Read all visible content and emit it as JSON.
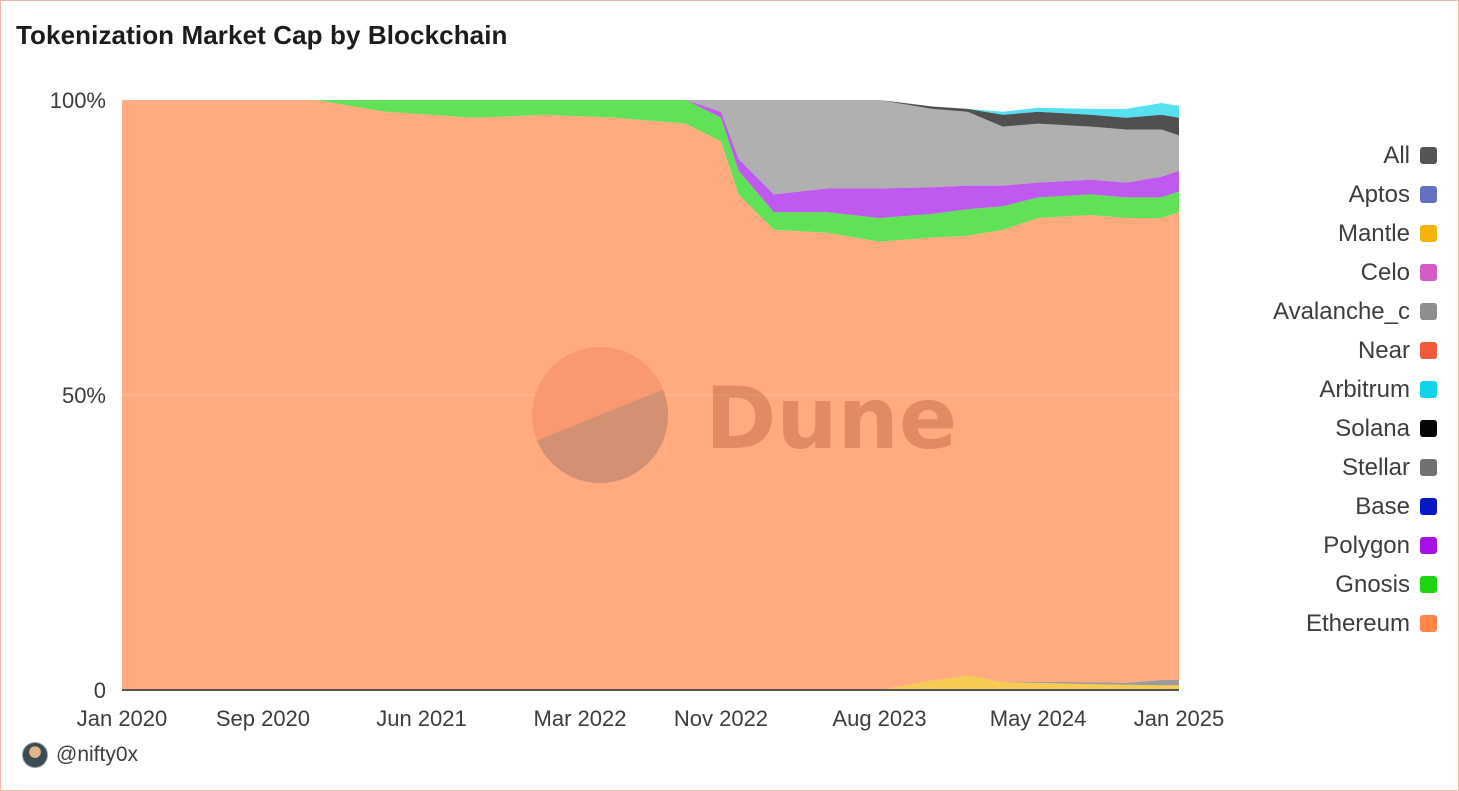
{
  "title": "Tokenization Market Cap by Blockchain",
  "author": "@nifty0x",
  "watermark": "Dune",
  "colors": {
    "Ethereum": "#ff8848",
    "Gnosis": "#1ed40f",
    "Polygon": "#a512e8",
    "Base": "#0717c4",
    "Stellar": "#707070",
    "Solana": "#050505",
    "Arbitrum": "#10d4e8",
    "Near": "#f4583a",
    "Avalanche_c": "#8e8e8e",
    "Celo": "#d45cc4",
    "Mantle": "#f2b40a",
    "Aptos": "#6670c0",
    "All": "#555555"
  },
  "legend": [
    "All",
    "Aptos",
    "Mantle",
    "Celo",
    "Avalanche_c",
    "Near",
    "Arbitrum",
    "Solana",
    "Stellar",
    "Base",
    "Polygon",
    "Gnosis",
    "Ethereum"
  ],
  "chart_data": {
    "type": "area",
    "stacked_percent": true,
    "title": "Tokenization Market Cap by Blockchain",
    "xlabel": "",
    "ylabel": "",
    "ylim": [
      0,
      100
    ],
    "yticks": [
      {
        "value": 0,
        "label": "0"
      },
      {
        "value": 50,
        "label": "50%"
      },
      {
        "value": 100,
        "label": "100%"
      }
    ],
    "xlim": [
      "2020-01",
      "2025-01"
    ],
    "xticks": [
      {
        "value": "2020-01",
        "label": "Jan 2020"
      },
      {
        "value": "2020-09",
        "label": "Sep 2020"
      },
      {
        "value": "2021-06",
        "label": "Jun 2021"
      },
      {
        "value": "2022-03",
        "label": "Mar 2022"
      },
      {
        "value": "2022-11",
        "label": "Nov 2022"
      },
      {
        "value": "2023-08",
        "label": "Aug 2023"
      },
      {
        "value": "2024-05",
        "label": "May 2024"
      },
      {
        "value": "2025-01",
        "label": "Jan 2025"
      }
    ],
    "grid": true,
    "legend_position": "right",
    "x": [
      "2020-01",
      "2020-06",
      "2020-12",
      "2021-04",
      "2021-09",
      "2022-01",
      "2022-05",
      "2022-09",
      "2022-11",
      "2022-12",
      "2023-02",
      "2023-05",
      "2023-08",
      "2023-11",
      "2024-01",
      "2024-03",
      "2024-05",
      "2024-08",
      "2024-10",
      "2024-12",
      "2025-01"
    ],
    "series": [
      {
        "name": "Mantle",
        "values": [
          0,
          0,
          0,
          0,
          0,
          0,
          0,
          0,
          0,
          0,
          0,
          0,
          0,
          1.6,
          2.5,
          1.3,
          1.2,
          1.0,
          0.9,
          0.8,
          0.8
        ]
      },
      {
        "name": "Stellar",
        "values": [
          0,
          0,
          0,
          0,
          0,
          0,
          0,
          0,
          0,
          0,
          0,
          0,
          0,
          0,
          0,
          0,
          0.2,
          0.3,
          0.3,
          0.9,
          0.9
        ]
      },
      {
        "name": "Ethereum",
        "values": [
          100,
          100,
          100,
          98,
          97,
          97.5,
          97,
          96,
          93,
          84,
          78,
          77.5,
          76,
          75.1,
          74.5,
          76.7,
          78.6,
          79.2,
          78.8,
          78.3,
          79.3
        ]
      },
      {
        "name": "Gnosis",
        "values": [
          0,
          0,
          0,
          2,
          3,
          2.5,
          3,
          4,
          4,
          4,
          3,
          3.5,
          4,
          4,
          4.5,
          4,
          3.5,
          3.5,
          3.5,
          3.5,
          3.5
        ]
      },
      {
        "name": "Polygon",
        "values": [
          0,
          0,
          0,
          0,
          0,
          0,
          0,
          0,
          1,
          2,
          3,
          4,
          5,
          4.5,
          4,
          3.5,
          2.5,
          2.5,
          2.5,
          3.5,
          3.5
        ]
      },
      {
        "name": "Avalanche_c",
        "values": [
          0,
          0,
          0,
          0,
          0,
          0,
          0,
          0,
          2,
          10,
          16,
          15,
          15,
          13.3,
          12.5,
          10,
          10,
          9,
          9,
          8,
          6
        ]
      },
      {
        "name": "Solana",
        "values": [
          0,
          0,
          0,
          0,
          0,
          0,
          0,
          0,
          0,
          0,
          0,
          0,
          0,
          0.4,
          0.5,
          2,
          2,
          2,
          2,
          2.5,
          3
        ]
      },
      {
        "name": "Arbitrum",
        "values": [
          0,
          0,
          0,
          0,
          0,
          0,
          0,
          0,
          0,
          0,
          0,
          0,
          0,
          0,
          0,
          0.5,
          0.7,
          1,
          1.5,
          2,
          2
        ]
      }
    ]
  }
}
